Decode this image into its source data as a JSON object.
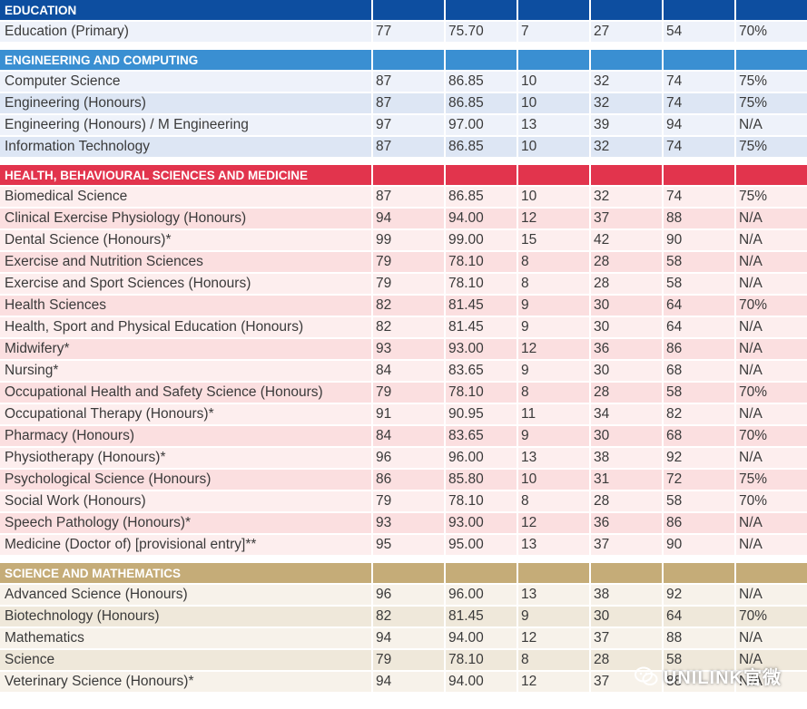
{
  "colors": {
    "education": "#0d4ea0",
    "engineering": "#3a8fd2",
    "health": "#e2344d",
    "science": "#c5ac78"
  },
  "sections": [
    {
      "title": "EDUCATION",
      "rows": [
        [
          "Education (Primary)",
          "77",
          "75.70",
          "7",
          "27",
          "54",
          "70%"
        ]
      ]
    },
    {
      "title": "ENGINEERING AND COMPUTING",
      "rows": [
        [
          "Computer Science",
          "87",
          "86.85",
          "10",
          "32",
          "74",
          "75%"
        ],
        [
          "Engineering (Honours)",
          "87",
          "86.85",
          "10",
          "32",
          "74",
          "75%"
        ],
        [
          "Engineering (Honours) / M Engineering",
          "97",
          "97.00",
          "13",
          "39",
          "94",
          "N/A"
        ],
        [
          "Information Technology",
          "87",
          "86.85",
          "10",
          "32",
          "74",
          "75%"
        ]
      ]
    },
    {
      "title": "HEALTH, BEHAVIOURAL SCIENCES AND MEDICINE",
      "rows": [
        [
          "Biomedical Science",
          "87",
          "86.85",
          "10",
          "32",
          "74",
          "75%"
        ],
        [
          "Clinical Exercise Physiology (Honours)",
          "94",
          "94.00",
          "12",
          "37",
          "88",
          "N/A"
        ],
        [
          "Dental Science (Honours)*",
          "99",
          "99.00",
          "15",
          "42",
          "90",
          "N/A"
        ],
        [
          "Exercise and Nutrition Sciences",
          "79",
          "78.10",
          "8",
          "28",
          "58",
          "N/A"
        ],
        [
          "Exercise and Sport Sciences (Honours)",
          "79",
          "78.10",
          "8",
          "28",
          "58",
          "N/A"
        ],
        [
          "Health Sciences",
          "82",
          "81.45",
          "9",
          "30",
          "64",
          "70%"
        ],
        [
          "Health, Sport and Physical Education (Honours)",
          "82",
          "81.45",
          "9",
          "30",
          "64",
          "N/A"
        ],
        [
          "Midwifery*",
          "93",
          "93.00",
          "12",
          "36",
          "86",
          "N/A"
        ],
        [
          "Nursing*",
          "84",
          "83.65",
          "9",
          "30",
          "68",
          "N/A"
        ],
        [
          "Occupational Health and Safety Science (Honours)",
          "79",
          "78.10",
          "8",
          "28",
          "58",
          "70%"
        ],
        [
          "Occupational Therapy (Honours)*",
          "91",
          "90.95",
          "11",
          "34",
          "82",
          "N/A"
        ],
        [
          "Pharmacy (Honours)",
          "84",
          "83.65",
          "9",
          "30",
          "68",
          "70%"
        ],
        [
          "Physiotherapy (Honours)*",
          "96",
          "96.00",
          "13",
          "38",
          "92",
          "N/A"
        ],
        [
          "Psychological Science (Honours)",
          "86",
          "85.80",
          "10",
          "31",
          "72",
          "75%"
        ],
        [
          "Social Work (Honours)",
          "79",
          "78.10",
          "8",
          "28",
          "58",
          "70%"
        ],
        [
          "Speech Pathology (Honours)*",
          "93",
          "93.00",
          "12",
          "36",
          "86",
          "N/A"
        ],
        [
          "Medicine (Doctor of) [provisional entry]**",
          "95",
          "95.00",
          "13",
          "37",
          "90",
          "N/A"
        ]
      ]
    },
    {
      "title": "SCIENCE AND MATHEMATICS",
      "rows": [
        [
          "Advanced Science (Honours)",
          "96",
          "96.00",
          "13",
          "38",
          "92",
          "N/A"
        ],
        [
          "Biotechnology (Honours)",
          "82",
          "81.45",
          "9",
          "30",
          "64",
          "70%"
        ],
        [
          "Mathematics",
          "94",
          "94.00",
          "12",
          "37",
          "88",
          "N/A"
        ],
        [
          "Science",
          "79",
          "78.10",
          "8",
          "28",
          "58",
          "N/A"
        ],
        [
          "Veterinary Science (Honours)*",
          "94",
          "94.00",
          "12",
          "37",
          "88",
          "N/A"
        ]
      ]
    }
  ],
  "watermark": {
    "text": "UNILINK官微",
    "icon": "wechat-icon"
  }
}
